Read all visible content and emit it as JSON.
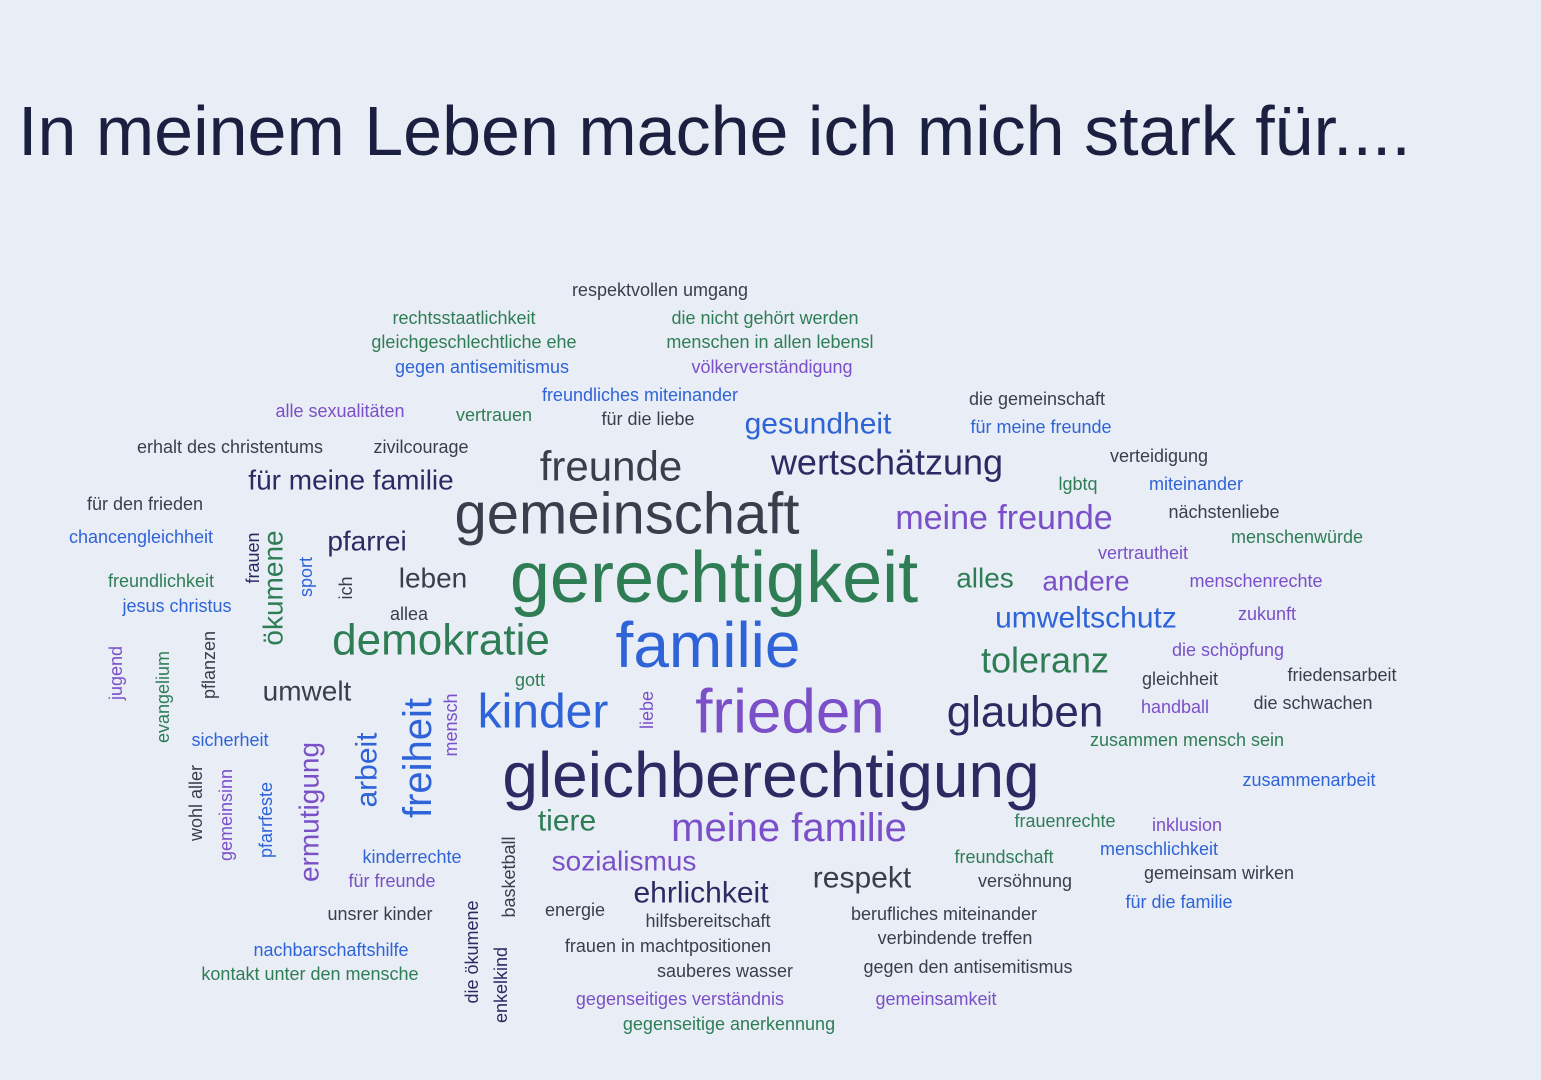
{
  "title": "In meinem Leben mache ich mich stark für....",
  "words": [
    "respektvollen umgang",
    "rechtsstaatlichkeit",
    "die nicht gehört werden",
    "gleichgeschlechtliche ehe",
    "menschen in allen lebensl",
    "gegen antisemitismus",
    "völkerverständigung",
    "freundliches miteinander",
    "alle sexualitäten",
    "vertrauen",
    "für die liebe",
    "gesundheit",
    "die gemeinschaft",
    "für meine freunde",
    "erhalt des christentums",
    "zivilcourage",
    "freunde",
    "wertschätzung",
    "verteidigung",
    "für meine familie",
    "lgbtq",
    "miteinander",
    "für den frieden",
    "gemeinschaft",
    "meine freunde",
    "nächstenliebe",
    "chancengleichheit",
    "menschenwürde",
    "pfarrei",
    "vertrautheit",
    "frauen",
    "ökumene",
    "sport",
    "ich",
    "gerechtigkeit",
    "leben",
    "alles",
    "andere",
    "menschenrechte",
    "freundlichkeit",
    "jesus christus",
    "allea",
    "umweltschutz",
    "zukunft",
    "demokratie",
    "familie",
    "die schöpfung",
    "toleranz",
    "friedensarbeit",
    "gleichheit",
    "jugend",
    "evangelium",
    "pflanzen",
    "gott",
    "umwelt",
    "kinder",
    "liebe",
    "frieden",
    "glauben",
    "handball",
    "die schwachen",
    "mensch",
    "freiheit",
    "arbeit",
    "sicherheit",
    "zusammen mensch sein",
    "gleichberechtigung",
    "zusammenarbeit",
    "ermutigung",
    "wohl aller",
    "gemeinsinn",
    "pfarrfeste",
    "tiere",
    "meine familie",
    "frauenrechte",
    "inklusion",
    "menschlichkeit",
    "kinderrechte",
    "sozialismus",
    "freundschaft",
    "für freunde",
    "basketball",
    "ehrlichkeit",
    "respekt",
    "versöhnung",
    "gemeinsam wirken",
    "für die familie",
    "unsrer kinder",
    "energie",
    "hilfsbereitschaft",
    "berufliches miteinander",
    "verbindende treffen",
    "die ökumene",
    "nachbarschaftshilfe",
    "frauen in machtpositionen",
    "enkelkind",
    "gegen den antisemitismus",
    "kontakt unter den mensche",
    "sauberes wasser",
    "gegenseitiges verständnis",
    "gemeinsamkeit",
    "gegenseitige anerkennung"
  ]
}
